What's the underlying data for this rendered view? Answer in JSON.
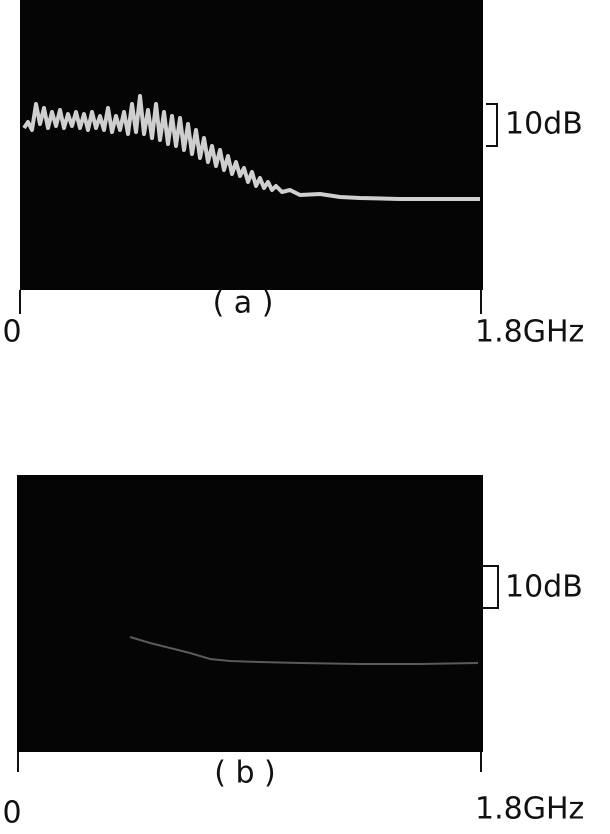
{
  "panels": [
    {
      "label": "( a )",
      "scale": "10dB",
      "x_start": "0",
      "x_end": "1.8GHz"
    },
    {
      "label": "( b )",
      "scale": "10dB",
      "x_start": "0",
      "x_end": "1.8GHz"
    }
  ]
}
